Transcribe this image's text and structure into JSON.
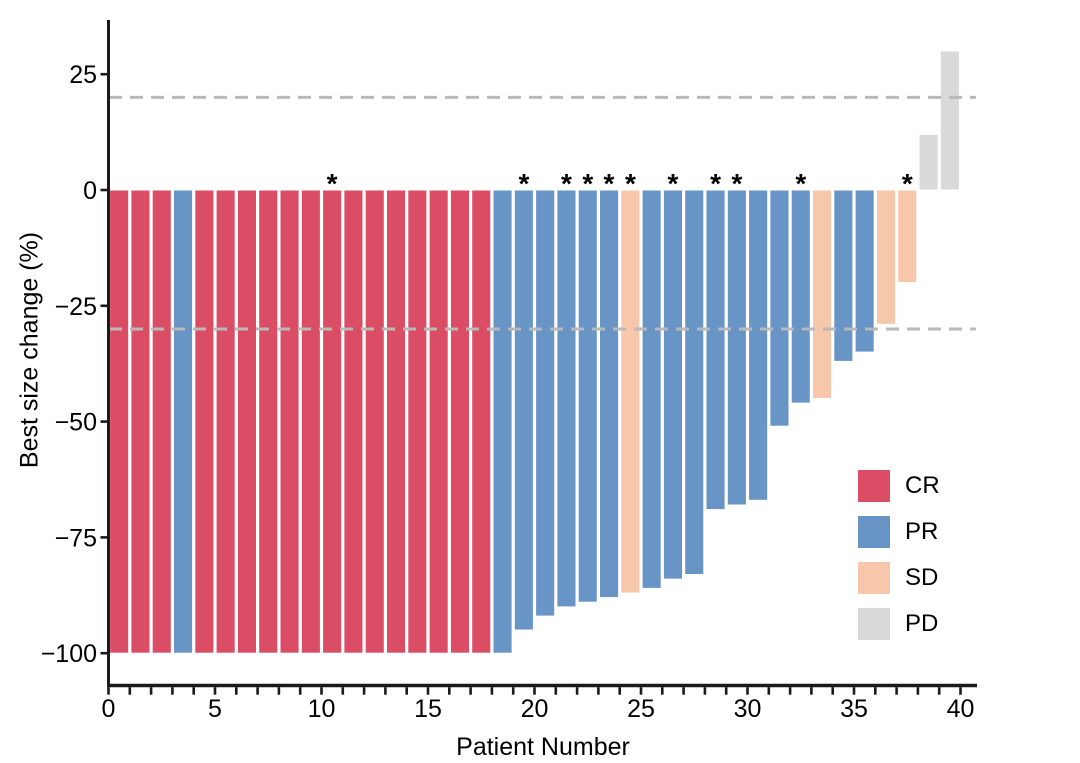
{
  "chart_data": {
    "type": "bar",
    "variant": "waterfall",
    "title": "",
    "xlabel": "Patient Number",
    "ylabel": "Best size change (%)",
    "xlim": [
      0,
      40.8
    ],
    "ylim": [
      -107,
      37
    ],
    "x_major_ticks": [
      0,
      5,
      10,
      15,
      20,
      25,
      30,
      35,
      40
    ],
    "x_minor_tick_step": 1,
    "x_tick_max": 40,
    "y_ticks": [
      25,
      0,
      -25,
      -50,
      -75,
      -100
    ],
    "y_tick_labels": [
      "25",
      "0",
      "−25",
      "−50",
      "−75",
      "−100"
    ],
    "grid": false,
    "reference_lines": [
      {
        "y": 20,
        "style": "dashed"
      },
      {
        "y": -30,
        "style": "dashed"
      }
    ],
    "legend": {
      "position": "inside-right",
      "entries": [
        {
          "label": "CR",
          "color": "#db4d65"
        },
        {
          "label": "PR",
          "color": "#6894c6"
        },
        {
          "label": "SD",
          "color": "#f7c7ab"
        },
        {
          "label": "PD",
          "color": "#d9d9d9"
        }
      ]
    },
    "annotation_symbol": "*",
    "bars": [
      {
        "patient": 1,
        "value": -100,
        "response": "CR",
        "star": false
      },
      {
        "patient": 2,
        "value": -100,
        "response": "CR",
        "star": false
      },
      {
        "patient": 3,
        "value": -100,
        "response": "CR",
        "star": false
      },
      {
        "patient": 4,
        "value": -100,
        "response": "PR",
        "star": false
      },
      {
        "patient": 5,
        "value": -100,
        "response": "CR",
        "star": false
      },
      {
        "patient": 6,
        "value": -100,
        "response": "CR",
        "star": false
      },
      {
        "patient": 7,
        "value": -100,
        "response": "CR",
        "star": false
      },
      {
        "patient": 8,
        "value": -100,
        "response": "CR",
        "star": false
      },
      {
        "patient": 9,
        "value": -100,
        "response": "CR",
        "star": false
      },
      {
        "patient": 10,
        "value": -100,
        "response": "CR",
        "star": false
      },
      {
        "patient": 11,
        "value": -100,
        "response": "CR",
        "star": true
      },
      {
        "patient": 12,
        "value": -100,
        "response": "CR",
        "star": false
      },
      {
        "patient": 13,
        "value": -100,
        "response": "CR",
        "star": false
      },
      {
        "patient": 14,
        "value": -100,
        "response": "CR",
        "star": false
      },
      {
        "patient": 15,
        "value": -100,
        "response": "CR",
        "star": false
      },
      {
        "patient": 16,
        "value": -100,
        "response": "CR",
        "star": false
      },
      {
        "patient": 17,
        "value": -100,
        "response": "CR",
        "star": false
      },
      {
        "patient": 18,
        "value": -100,
        "response": "CR",
        "star": false
      },
      {
        "patient": 19,
        "value": -100,
        "response": "PR",
        "star": false
      },
      {
        "patient": 20,
        "value": -95,
        "response": "PR",
        "star": true
      },
      {
        "patient": 21,
        "value": -92,
        "response": "PR",
        "star": false
      },
      {
        "patient": 22,
        "value": -90,
        "response": "PR",
        "star": true
      },
      {
        "patient": 23,
        "value": -89,
        "response": "PR",
        "star": true
      },
      {
        "patient": 24,
        "value": -88,
        "response": "PR",
        "star": true
      },
      {
        "patient": 25,
        "value": -87,
        "response": "SD",
        "star": true
      },
      {
        "patient": 26,
        "value": -86,
        "response": "PR",
        "star": false
      },
      {
        "patient": 27,
        "value": -84,
        "response": "PR",
        "star": true
      },
      {
        "patient": 28,
        "value": -83,
        "response": "PR",
        "star": false
      },
      {
        "patient": 29,
        "value": -69,
        "response": "PR",
        "star": true
      },
      {
        "patient": 30,
        "value": -68,
        "response": "PR",
        "star": true
      },
      {
        "patient": 31,
        "value": -67,
        "response": "PR",
        "star": false
      },
      {
        "patient": 32,
        "value": -51,
        "response": "PR",
        "star": false
      },
      {
        "patient": 33,
        "value": -46,
        "response": "PR",
        "star": true
      },
      {
        "patient": 34,
        "value": -45,
        "response": "SD",
        "star": false
      },
      {
        "patient": 35,
        "value": -37,
        "response": "PR",
        "star": false
      },
      {
        "patient": 36,
        "value": -35,
        "response": "PR",
        "star": false
      },
      {
        "patient": 37,
        "value": -29,
        "response": "SD",
        "star": false
      },
      {
        "patient": 38,
        "value": -20,
        "response": "SD",
        "star": true
      },
      {
        "patient": 39,
        "value": 12,
        "response": "PD",
        "star": false
      },
      {
        "patient": 40,
        "value": 30,
        "response": "PD",
        "star": false
      }
    ]
  },
  "style": {
    "bar_colors": {
      "CR": "#db4d65",
      "PR": "#6894c6",
      "SD": "#f7c7ab",
      "PD": "#d9d9d9"
    },
    "bar_border_color": "#ffffff",
    "reference_line_color": "#b9b9b9",
    "axis_color": "#1a1a1a",
    "text_color": "#000000",
    "background": "#ffffff"
  }
}
